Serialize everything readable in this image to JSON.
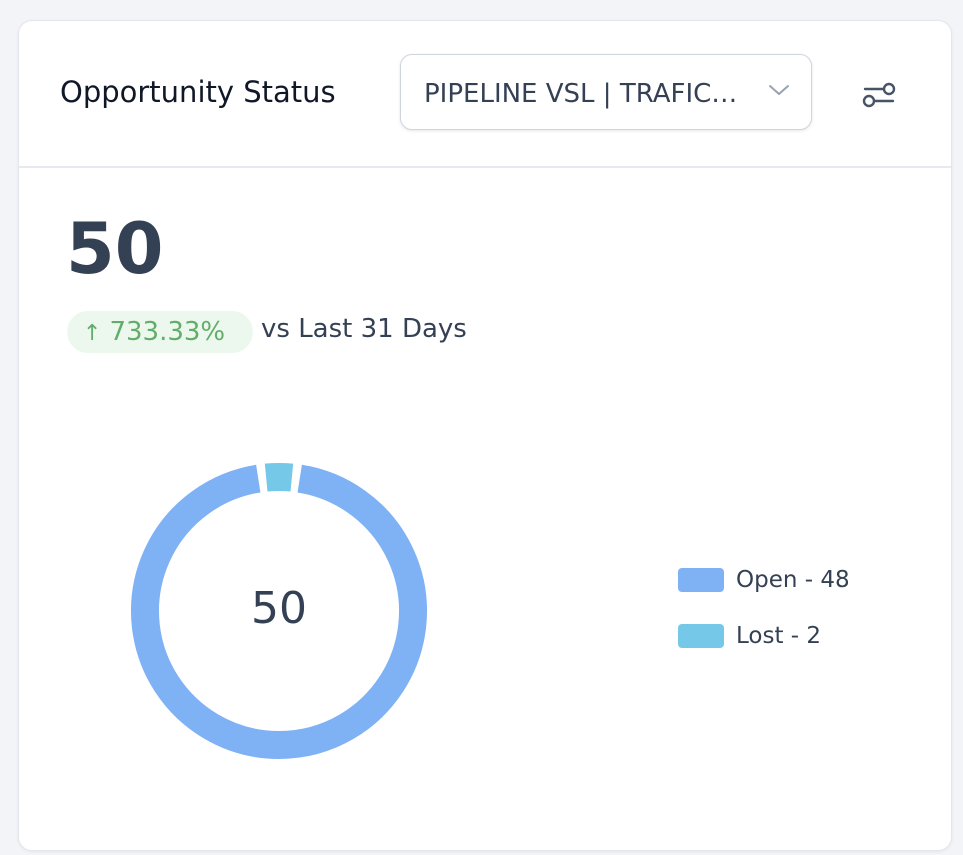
{
  "header": {
    "title": "Opportunity Status",
    "pipeline_select_value": "PIPELINE VSL | TRAFICO ORGANICO",
    "icons": {
      "select": "chevron-down-icon",
      "filter": "filter-settings-icon"
    }
  },
  "summary": {
    "total": "50",
    "change_arrow": "↑",
    "change": "733.33%",
    "comparison": "vs Last 31 Days"
  },
  "colors": {
    "open": "#7fb1f5",
    "lost": "#76c8e8",
    "positive": "#62ad6a"
  },
  "chart_data": {
    "type": "pie",
    "center_label": "50",
    "slices": [
      {
        "name": "Open",
        "value": 48,
        "label": "Open - 48"
      },
      {
        "name": "Lost",
        "value": 2,
        "label": "Lost - 2"
      }
    ]
  }
}
